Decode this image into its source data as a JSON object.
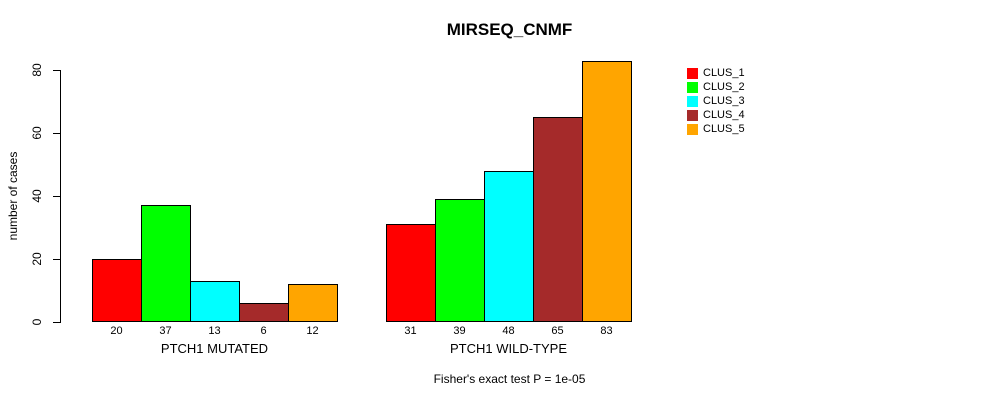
{
  "chart_data": {
    "type": "bar",
    "title": "MIRSEQ_CNMF",
    "ylabel": "number of cases",
    "ylim": [
      0,
      80
    ],
    "yticks": [
      0,
      20,
      40,
      60,
      80
    ],
    "grid": false,
    "legend_position": "top-right",
    "categories": [
      "PTCH1 MUTATED",
      "PTCH1 WILD-TYPE"
    ],
    "series": [
      {
        "name": "CLUS_1",
        "color": "#ff0000",
        "values": [
          20,
          31
        ]
      },
      {
        "name": "CLUS_2",
        "color": "#00ff00",
        "values": [
          37,
          39
        ]
      },
      {
        "name": "CLUS_3",
        "color": "#00ffff",
        "values": [
          13,
          48
        ]
      },
      {
        "name": "CLUS_4",
        "color": "#a52a2a",
        "values": [
          6,
          65
        ]
      },
      {
        "name": "CLUS_5",
        "color": "#ffa500",
        "values": [
          12,
          83
        ]
      }
    ],
    "bar_value_labels_shown": true,
    "footnote": "Fisher's exact test P = 1e-05"
  }
}
